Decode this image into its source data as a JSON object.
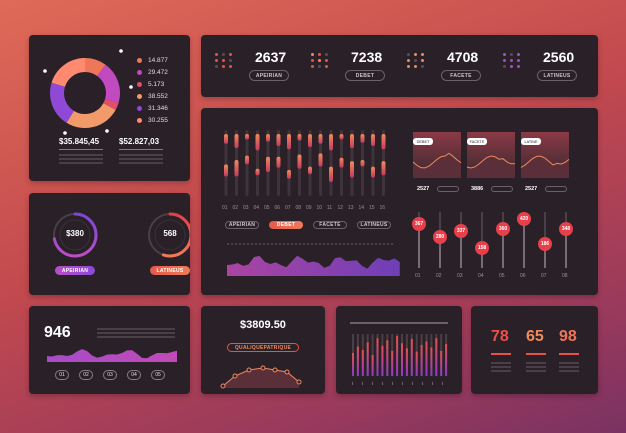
{
  "colors": {
    "accent_red": "#e8504a",
    "accent_orange": "#f08a5a",
    "accent_purple": "#a64cc8",
    "card": "#2a2128"
  },
  "donut": {
    "legend": [
      "14.877",
      "29.472",
      "5.173",
      "38.552",
      "31.346",
      "30.255"
    ],
    "legend_colors": [
      "#f0765a",
      "#c24ac0",
      "#e04e6a",
      "#f29a6a",
      "#8f49d6",
      "#ff8a70"
    ],
    "segments": [
      14.877,
      29.472,
      5.173,
      38.552,
      31.346,
      30.255
    ],
    "total_left": "$35.845,45",
    "total_right": "$52.827,03"
  },
  "kpis": [
    {
      "value": "2637",
      "label": "APEIRIAN"
    },
    {
      "value": "7238",
      "label": "DEBET"
    },
    {
      "value": "4708",
      "label": "FACETE"
    },
    {
      "value": "2560",
      "label": "LATINEUS"
    }
  ],
  "gauges": [
    {
      "value": "$380",
      "label": "APEIRIAN",
      "percent": 0.72
    },
    {
      "value": "568",
      "label": "LATINEUS",
      "percent": 0.55
    }
  ],
  "main": {
    "bar_labels": [
      "01",
      "02",
      "03",
      "04",
      "05",
      "06",
      "07",
      "08",
      "09",
      "10",
      "11",
      "12",
      "13",
      "14",
      "15",
      "16"
    ],
    "bar_values": [
      [
        18,
        30,
        22,
        12
      ],
      [
        26,
        14,
        30,
        20
      ],
      [
        10,
        22,
        16,
        28
      ],
      [
        30,
        26,
        12,
        18
      ],
      [
        14,
        20,
        28,
        24
      ],
      [
        22,
        12,
        20,
        30
      ],
      [
        28,
        30,
        16,
        10
      ],
      [
        12,
        18,
        26,
        22
      ],
      [
        24,
        28,
        14,
        18
      ],
      [
        18,
        10,
        24,
        30
      ],
      [
        30,
        22,
        28,
        14
      ],
      [
        10,
        26,
        18,
        24
      ],
      [
        26,
        16,
        30,
        20
      ],
      [
        16,
        24,
        12,
        28
      ],
      [
        22,
        30,
        20,
        16
      ],
      [
        28,
        14,
        26,
        22
      ]
    ],
    "toggles": [
      "APEIRIAN",
      "DEBET",
      "FACETE",
      "LATINEUS"
    ],
    "mini_charts": [
      {
        "label": "DEBET",
        "value": "2527"
      },
      {
        "label": "FACETE",
        "value": "3886"
      },
      {
        "label": "LATINE",
        "value": "2527"
      }
    ],
    "sliders": {
      "values": [
        "367",
        "280",
        "337",
        "158",
        "360",
        "420",
        "186",
        "348"
      ],
      "labels": [
        "01",
        "02",
        "03",
        "04",
        "05",
        "06",
        "07",
        "08"
      ],
      "levels": [
        0.78,
        0.55,
        0.66,
        0.35,
        0.7,
        0.88,
        0.42,
        0.7
      ]
    }
  },
  "bottom1": {
    "value": "946",
    "pages": [
      "01",
      "02",
      "03",
      "04",
      "05"
    ]
  },
  "bottom2": {
    "value": "$3809.50",
    "label": "QUALIQUEPATRIQUE"
  },
  "bottom3": {
    "bars": [
      0.55,
      0.7,
      0.62,
      0.8,
      0.5,
      0.9,
      0.72,
      0.85,
      0.6,
      0.95,
      0.78,
      0.66,
      0.88,
      0.58,
      0.74,
      0.82,
      0.68,
      0.9,
      0.6,
      0.76
    ]
  },
  "bottom4": {
    "values": [
      "78",
      "65",
      "98"
    ]
  }
}
